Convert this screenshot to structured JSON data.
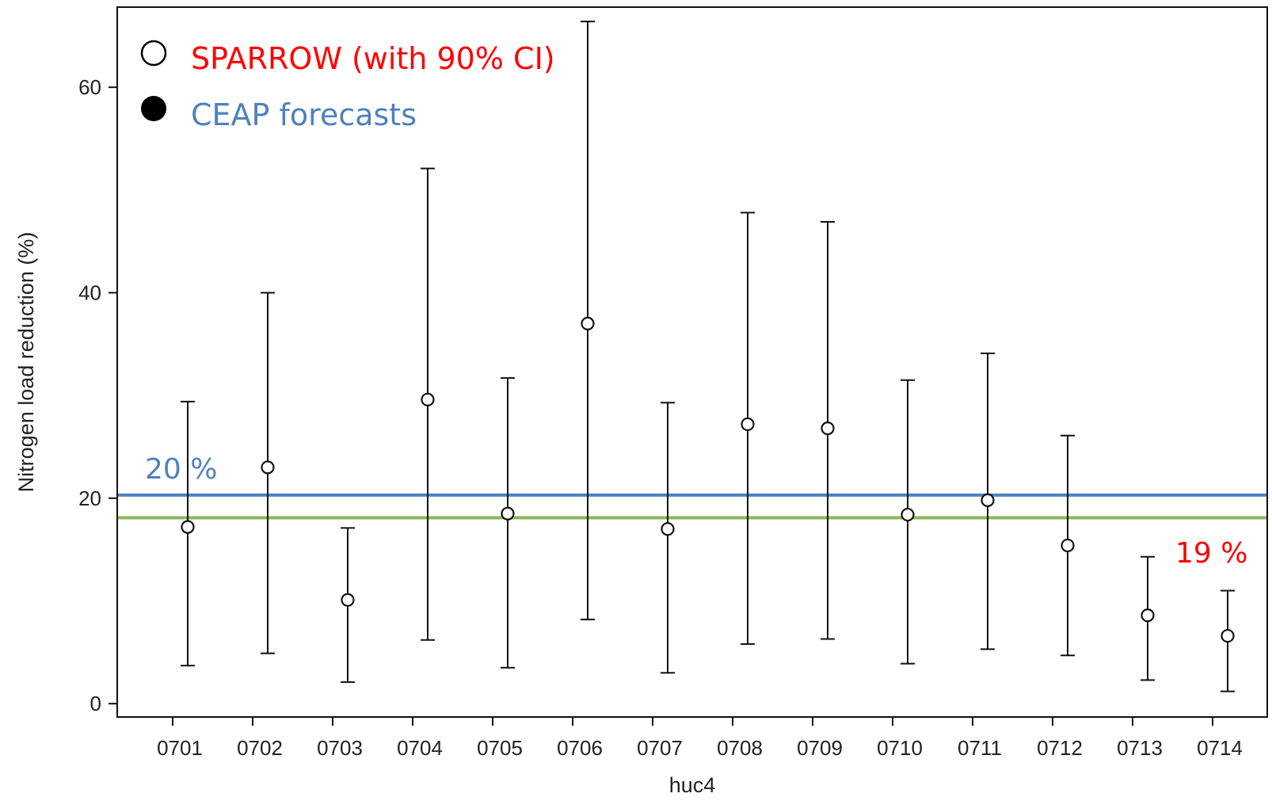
{
  "chart_data": {
    "type": "scatter",
    "title": "",
    "xlabel": "huc4",
    "ylabel": "Nitrogen load reduction (%)",
    "categories": [
      "0701",
      "0702",
      "0703",
      "0704",
      "0705",
      "0706",
      "0707",
      "0708",
      "0709",
      "0710",
      "0711",
      "0712",
      "0713",
      "0714"
    ],
    "ylim": [
      -1.3,
      67.8
    ],
    "yticks": [
      0,
      20,
      40,
      60
    ],
    "grid": false,
    "series": [
      {
        "name": "SPARROW (with 90% CI)",
        "marker": "open-circle",
        "values": [
          17.2,
          23.0,
          10.1,
          29.6,
          18.5,
          37.0,
          17.0,
          27.2,
          26.8,
          18.4,
          19.8,
          15.4,
          8.6,
          6.6
        ],
        "lower": [
          3.7,
          4.9,
          2.1,
          6.2,
          3.5,
          8.2,
          3.0,
          5.8,
          6.3,
          3.9,
          5.3,
          4.7,
          2.3,
          1.2
        ],
        "upper": [
          29.4,
          40.0,
          17.1,
          52.1,
          31.7,
          66.4,
          29.3,
          47.8,
          46.9,
          31.5,
          34.1,
          26.1,
          14.3,
          11.0
        ]
      }
    ],
    "reference_lines": [
      {
        "y": 20.3,
        "color": "#4f81bd"
      },
      {
        "y": 18.1,
        "color": "#8db554"
      }
    ],
    "legend": {
      "placement": "top-left",
      "entries": [
        {
          "label": "SPARROW (with 90% CI)",
          "marker": "open-circle",
          "color": "#ff0000"
        },
        {
          "label": "CEAP forecasts",
          "marker": "filled-circle",
          "color": "#4f81bd"
        }
      ]
    },
    "annotations": [
      {
        "text": "20 %",
        "color": "#4f81bd"
      },
      {
        "text": "19 %",
        "color": "#ff0000"
      }
    ]
  }
}
